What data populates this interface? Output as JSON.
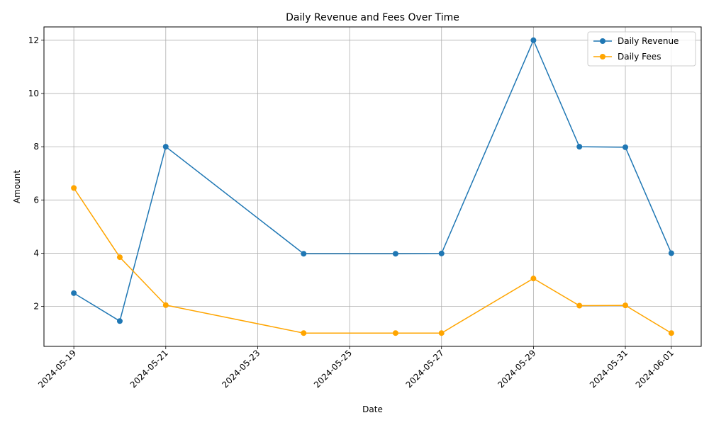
{
  "chart_data": {
    "type": "line",
    "title": "Daily Revenue and Fees Over Time",
    "xlabel": "Date",
    "ylabel": "Amount",
    "x_tick_labels": [
      "2024-05-19",
      "2024-05-21",
      "2024-05-23",
      "2024-05-25",
      "2024-05-27",
      "2024-05-29",
      "2024-05-31",
      "2024-06-01"
    ],
    "y_ticks": [
      2,
      4,
      6,
      8,
      10,
      12
    ],
    "ylim": [
      0.5,
      12.5
    ],
    "xlim": [
      "2024-05-18",
      "2024-06-01"
    ],
    "grid": true,
    "legend_position": "top-right",
    "series": [
      {
        "name": "Daily Revenue",
        "color": "#1f77b4",
        "x": [
          "2024-05-19",
          "2024-05-20",
          "2024-05-21",
          "2024-05-24",
          "2024-05-26",
          "2024-05-27",
          "2024-05-29",
          "2024-05-30",
          "2024-05-31",
          "2024-06-01"
        ],
        "values": [
          2.5,
          1.45,
          8.0,
          3.98,
          3.98,
          3.99,
          12.0,
          8.0,
          7.98,
          4.0
        ]
      },
      {
        "name": "Daily Fees",
        "color": "#ffa500",
        "x": [
          "2024-05-19",
          "2024-05-20",
          "2024-05-21",
          "2024-05-24",
          "2024-05-26",
          "2024-05-27",
          "2024-05-29",
          "2024-05-30",
          "2024-05-31",
          "2024-06-01"
        ],
        "values": [
          6.45,
          3.85,
          2.05,
          1.0,
          1.0,
          1.0,
          3.05,
          2.03,
          2.04,
          1.0
        ]
      }
    ]
  }
}
